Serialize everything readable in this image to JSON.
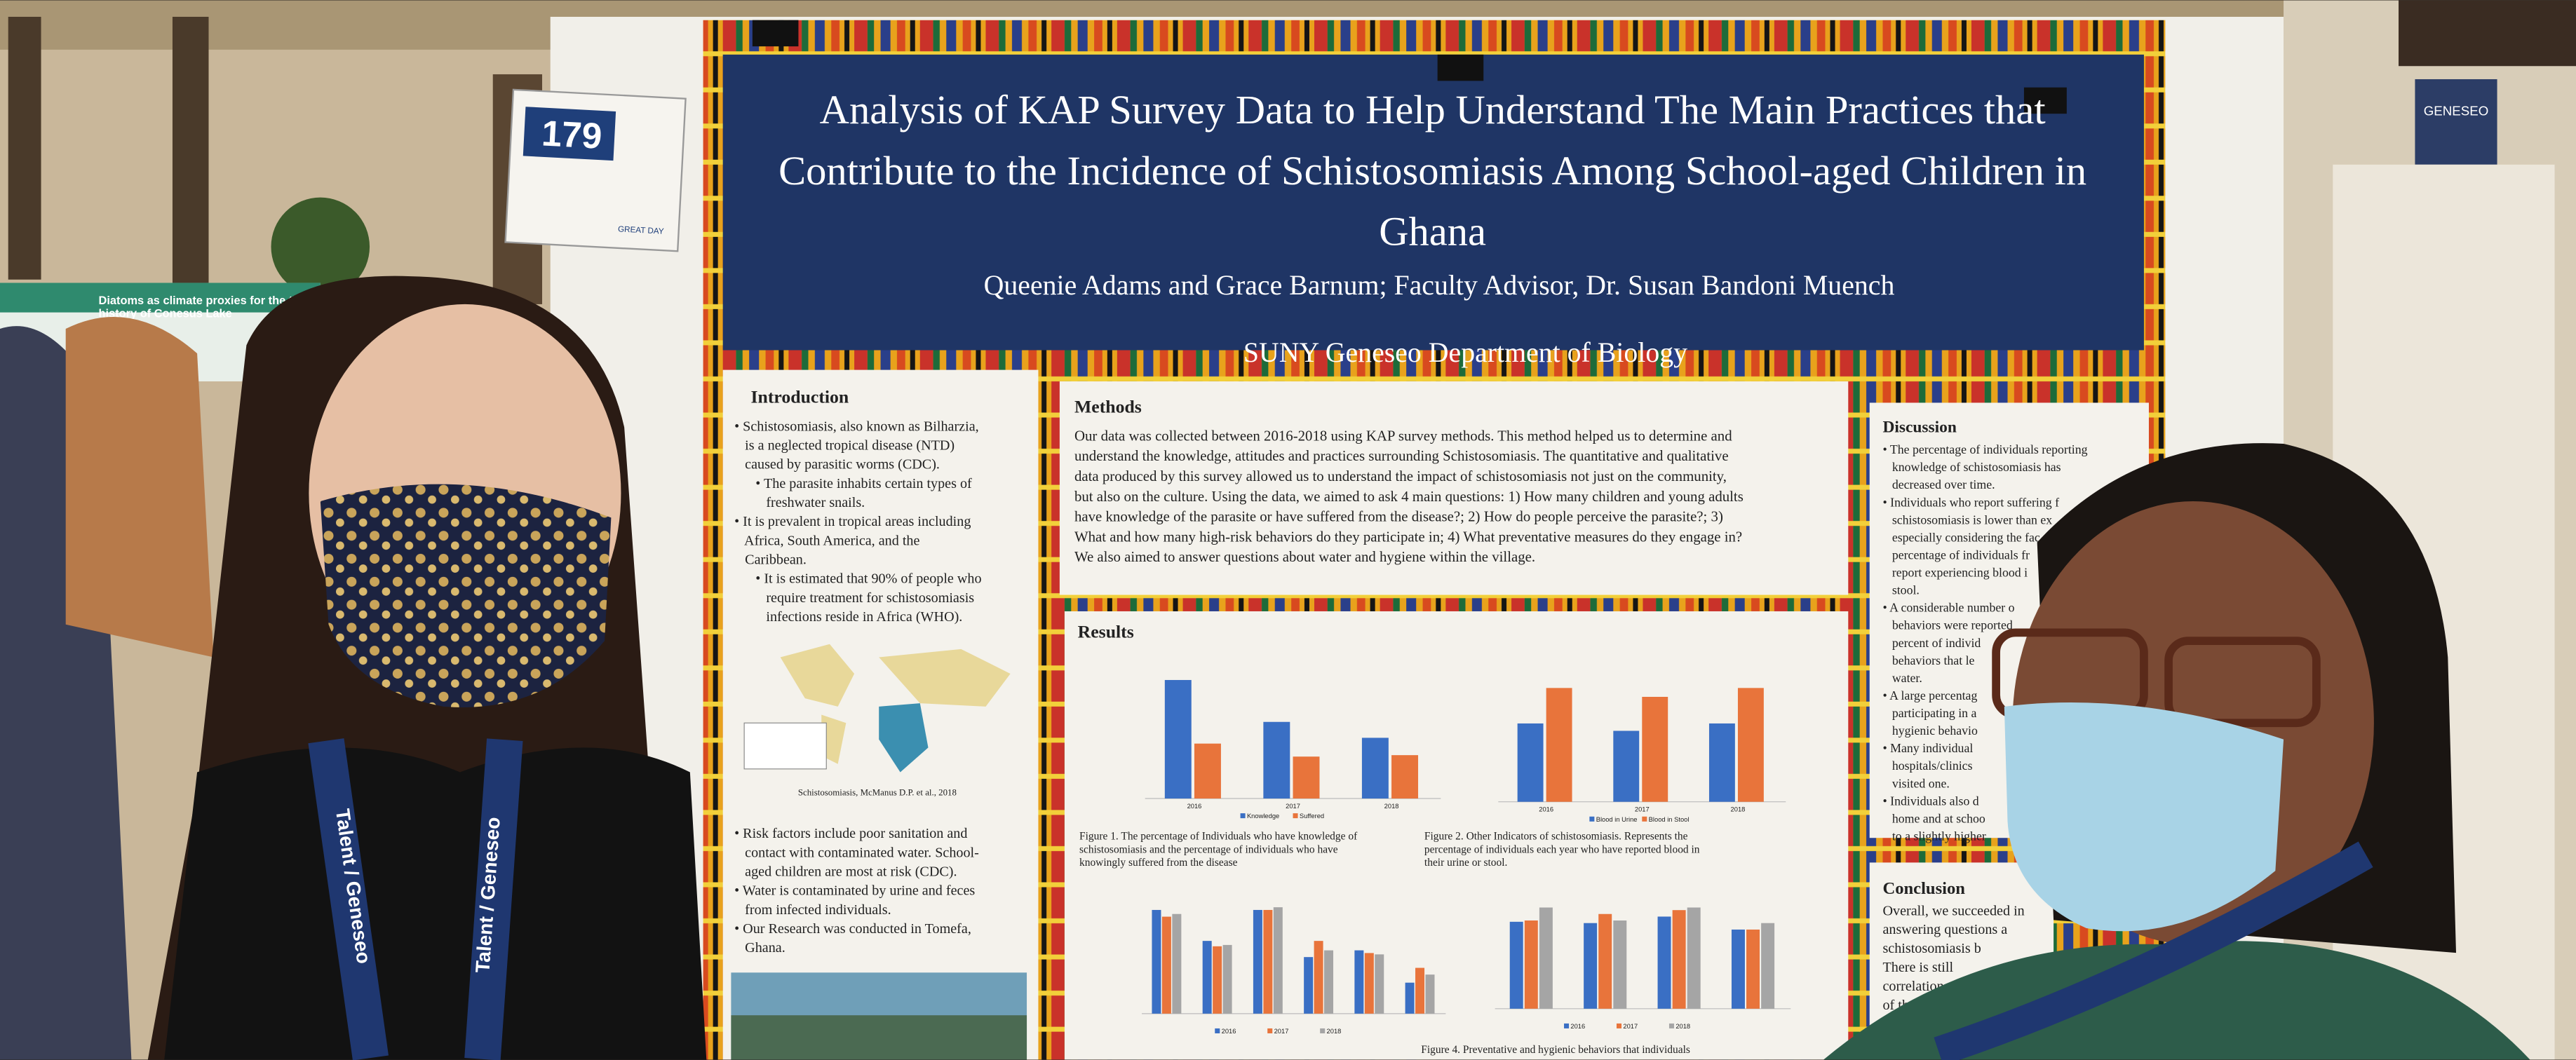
{
  "sign": {
    "number": "179",
    "label": "GREAT DAY"
  },
  "banner": "GENESEO",
  "background_poster": {
    "title_lines": [
      "Diatoms as climate proxies for the thermal",
      "history of Conesus Lake"
    ]
  },
  "lanyard": "Talent / Geneseo",
  "poster": {
    "title_lines": [
      "Analysis of KAP Survey Data to Help Understand The Main Practices that",
      "Contribute to the Incidence of Schistosomiasis Among School-aged Children in",
      "Ghana"
    ],
    "authors": "Queenie Adams and Grace Barnum; Faculty Advisor, Dr. Susan Bandoni Muench",
    "department": "SUNY Geneseo Department of Biology",
    "introduction": {
      "heading": "Introduction",
      "lines": [
        "• Schistosomiasis, also known as Bilharzia,",
        "   is a neglected tropical disease (NTD)",
        "   caused by parasitic worms (CDC).",
        "      • The parasite inhabits certain types of",
        "         freshwater snails.",
        "• It is prevalent in tropical areas including",
        "   Africa, South America, and the",
        "   Caribbean.",
        "      • It is estimated that 90% of people who",
        "         require treatment for schistosomiasis",
        "         infections reside in Africa (WHO)."
      ],
      "map_caption": "Schistosomiasis, McManus D.P. et al., 2018",
      "lines2": [
        "• Risk factors include poor sanitation and",
        "   contact with contaminated water. School-",
        "   aged children are most at risk (CDC).",
        "• Water is contaminated by urine and feces",
        "   from infected individuals.",
        "• Our Research was conducted in Tomefa,",
        "   Ghana."
      ]
    },
    "methods": {
      "heading": "Methods",
      "lines": [
        "Our data was collected between 2016-2018 using KAP survey methods. This method helped us to determine and",
        "understand the knowledge, attitudes and practices surrounding Schistosomiasis. The quantitative and qualitative",
        "data produced by this survey allowed us to understand the impact of schistosomiasis not just on the community,",
        "but also on the culture. Using the data, we aimed to ask 4 main questions: 1) How many children and young adults",
        "have knowledge of the parasite or have suffered from the disease?; 2) How do people perceive the parasite?; 3)",
        "What and how many high-risk behaviors do they participate in; 4) What preventative measures do they engage in?",
        "We also aimed to answer questions about water and hygiene within the village."
      ]
    },
    "results": {
      "heading": "Results",
      "figures": [
        {
          "caption_lines": [
            "Figure 1. The percentage of Individuals who have knowledge of",
            "schistosomiasis and the percentage of individuals who have",
            "knowingly suffered from the disease"
          ],
          "categories": [
            "2016",
            "2017",
            "2018"
          ],
          "series": [
            {
              "name": "Knowledge",
              "color": "#3a6fc4",
              "values": [
                82,
                53,
                42
              ]
            },
            {
              "name": "Suffered",
              "color": "#e8743b",
              "values": [
                38,
                29,
                30
              ]
            }
          ]
        },
        {
          "caption_lines": [
            "Figure 2. Other Indicators of schistosomiasis. Represents the",
            "percentage of individuals each year who have reported blood in",
            "their urine or stool."
          ],
          "categories": [
            "2016",
            "2017",
            "2018"
          ],
          "series": [
            {
              "name": "Blood in Urine",
              "color": "#3a6fc4",
              "values": [
                53,
                48,
                53
              ]
            },
            {
              "name": "Blood in Stool",
              "color": "#e8743b",
              "values": [
                77,
                71,
                77
              ]
            }
          ]
        },
        {
          "series": [
            {
              "name": "2016",
              "color": "#3a6fc4",
              "values": [
                77,
                54,
                77,
                42,
                47,
                23
              ]
            },
            {
              "name": "2017",
              "color": "#e8743b",
              "values": [
                72,
                50,
                77,
                54,
                45,
                34
              ]
            },
            {
              "name": "2018",
              "color": "#a5a5a5",
              "values": [
                74,
                51,
                79,
                47,
                44,
                29
              ]
            }
          ]
        },
        {
          "caption_lines": [
            "Figure 4. Preventative and hygienic behaviors that individuals"
          ],
          "series": [
            {
              "name": "2016",
              "color": "#3a6fc4",
              "values": [
                67,
                66,
                71,
                61
              ]
            },
            {
              "name": "2017",
              "color": "#e8743b",
              "values": [
                68,
                73,
                76,
                61
              ]
            },
            {
              "name": "2018",
              "color": "#a5a5a5",
              "values": [
                78,
                68,
                78,
                66
              ]
            }
          ]
        }
      ]
    },
    "discussion": {
      "heading": "Discussion",
      "lines": [
        "• The percentage of individuals reporting",
        "   knowledge of schistosomiasis has",
        "   decreased over time.",
        "• Individuals who report suffering f",
        "   schistosomiasis is lower than ex",
        "   especially considering the fac",
        "   percentage of individuals fr",
        "   report experiencing blood i",
        "   stool.",
        "• A considerable number o",
        "   behaviors were reported",
        "   percent of individ",
        "   behaviors that le",
        "   water.",
        "• A large percentag",
        "   participating in a",
        "   hygienic behavio",
        "• Many individual",
        "   hospitals/clinics",
        "   visited one.",
        "• Individuals also d",
        "   home and at schoo",
        "   to a slightly higher"
      ]
    },
    "conclusion": {
      "heading": "Conclusion",
      "lines": [
        "Overall, we succeeded in",
        "answering questions a",
        "schistosomiasis b",
        "There is still",
        "correlation",
        "of the ris",
        "of sc"
      ]
    }
  }
}
